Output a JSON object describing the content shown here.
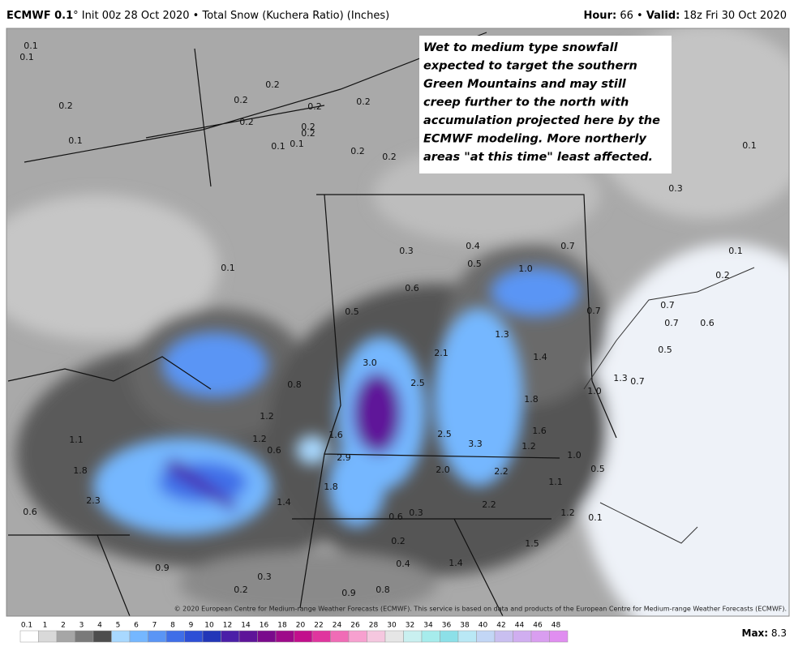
{
  "header": {
    "model": "ECMWF 0.1",
    "init": "° Init 00z 28 Oct 2020 • Total Snow (Kuchera Ratio) (Inches)",
    "hour_label": "Hour:",
    "hour": "66 •",
    "valid_label": "Valid:",
    "valid": "18z Fri 30 Oct 2020"
  },
  "annotation": [
    "Wet to medium type snowfall",
    "expected to target the southern",
    "Green Mountains and may still",
    "creep further to the north with",
    "accumulation projected here by the",
    "ECMWF modeling. More northerly",
    "areas \"at this time\" least affected."
  ],
  "map_labels": [
    "0.1",
    "0.1",
    "0.2",
    "0.2",
    "0.2",
    "0.2",
    "0.2",
    "0.2",
    "0.2",
    "0.2",
    "0.1",
    "0.1",
    "0.1",
    "0.2",
    "0.2",
    "0.1",
    "0.3",
    "0.3",
    "0.4",
    "0.5",
    "0.7",
    "0.1",
    "0.1",
    "1.0",
    "0.2",
    "0.6",
    "0.5",
    "0.7",
    "0.7",
    "0.7",
    "0.6",
    "1.3",
    "0.5",
    "1.4",
    "3.0",
    "2.1",
    "1.3",
    "0.7",
    "0.8",
    "2.5",
    "1.0",
    "1.8",
    "1.2",
    "1.6",
    "1.6",
    "2.5",
    "1.1",
    "1.2",
    "0.6",
    "3.3",
    "1.2",
    "1.0",
    "2.9",
    "1.8",
    "2.0",
    "2.2",
    "0.5",
    "1.8",
    "1.1",
    "2.3",
    "1.4",
    "2.2",
    "0.6",
    "0.6",
    "0.3",
    "1.2",
    "0.1",
    "0.2",
    "1.5",
    "0.4",
    "1.4",
    "0.9",
    "0.3",
    "0.2",
    "0.9",
    "0.8"
  ],
  "copyright": "© 2020 European Centre for Medium-range Weather Forecasts (ECMWF). This service is based on data and products of the European Centre for Medium-range Weather Forecasts (ECMWF).",
  "colorbar": {
    "ticks": [
      0.1,
      1,
      2,
      3,
      4,
      5,
      6,
      7,
      8,
      9,
      10,
      12,
      14,
      16,
      18,
      20,
      22,
      24,
      26,
      28,
      30,
      32,
      34,
      36,
      38,
      40,
      42,
      44,
      46,
      48
    ],
    "colors": [
      "#ffffff",
      "#d9d9d9",
      "#a6a6a6",
      "#7a7a7a",
      "#4d4d4d",
      "#a8d8ff",
      "#75b7ff",
      "#5a95f5",
      "#3f6ee8",
      "#2d4fd6",
      "#2236b8",
      "#4b1fa8",
      "#5e1499",
      "#7a0a8c",
      "#9e0a8a",
      "#c20f8c",
      "#e0359e",
      "#f06cb6",
      "#f7a0cf",
      "#f5c7df",
      "#e6e6e6",
      "#c9f0f0",
      "#a6ecec",
      "#8ce0e8",
      "#b9e8f5",
      "#c2d6f5",
      "#c9bff0",
      "#d0aef0",
      "#d99ef0",
      "#e08ef0"
    ]
  },
  "max_label": "Max:",
  "max_value": "8.3"
}
